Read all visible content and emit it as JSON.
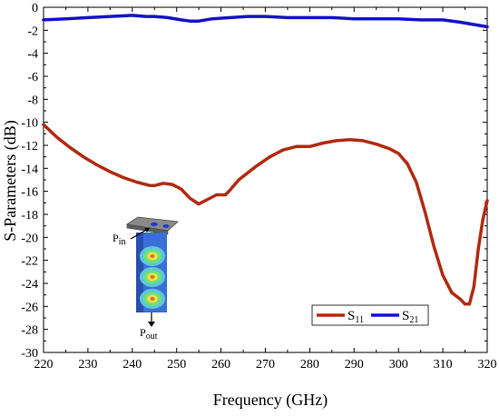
{
  "chart_data": {
    "type": "line",
    "title": "",
    "xlabel": "Frequency (GHz)",
    "ylabel": "S-Parameters (dB)",
    "xlim": [
      220,
      320
    ],
    "ylim": [
      -30,
      0
    ],
    "x_ticks": [
      220,
      230,
      240,
      250,
      260,
      270,
      280,
      290,
      300,
      310,
      320
    ],
    "y_ticks": [
      0,
      -2,
      -4,
      -6,
      -8,
      -10,
      -12,
      -14,
      -16,
      -18,
      -20,
      -22,
      -24,
      -26,
      -28,
      -30
    ],
    "grid": false,
    "legend_position": "bottom-right",
    "series": [
      {
        "name": "S11",
        "label_main": "S",
        "label_sub": "11",
        "color": "#b22a10",
        "x": [
          220,
          223,
          226,
          229,
          232,
          235,
          238,
          241,
          244,
          245,
          247,
          249,
          251,
          253,
          255,
          257,
          259,
          261,
          262,
          264,
          266,
          268,
          271,
          274,
          277,
          280,
          283,
          286,
          289,
          292,
          295,
          298,
          300,
          302,
          304,
          306,
          308,
          310,
          312,
          314,
          315,
          316,
          317,
          318,
          319,
          320
        ],
        "y": [
          -10.2,
          -11.3,
          -12.2,
          -13.0,
          -13.7,
          -14.3,
          -14.8,
          -15.2,
          -15.5,
          -15.5,
          -15.3,
          -15.4,
          -15.8,
          -16.6,
          -17.1,
          -16.7,
          -16.3,
          -16.3,
          -15.9,
          -15.0,
          -14.4,
          -13.8,
          -13.0,
          -12.4,
          -12.1,
          -12.1,
          -11.8,
          -11.6,
          -11.5,
          -11.6,
          -11.9,
          -12.3,
          -12.7,
          -13.6,
          -15.2,
          -17.8,
          -20.8,
          -23.3,
          -24.8,
          -25.4,
          -25.8,
          -25.8,
          -24.3,
          -21.0,
          -18.5,
          -16.8
        ]
      },
      {
        "name": "S21",
        "label_main": "S",
        "label_sub": "21",
        "color": "#1414c8",
        "x": [
          220,
          225,
          230,
          235,
          240,
          243,
          245,
          248,
          251,
          253,
          255,
          258,
          262,
          266,
          270,
          275,
          280,
          285,
          290,
          295,
          300,
          305,
          310,
          314,
          317,
          320
        ],
        "y": [
          -1.1,
          -1.0,
          -0.9,
          -0.8,
          -0.7,
          -0.8,
          -0.8,
          -0.9,
          -1.1,
          -1.2,
          -1.2,
          -1.0,
          -0.9,
          -0.8,
          -0.8,
          -0.9,
          -0.9,
          -0.9,
          -1.0,
          -1.0,
          -1.0,
          -1.1,
          -1.1,
          -1.3,
          -1.5,
          -1.7
        ]
      }
    ],
    "inset": {
      "input_label_main": "P",
      "input_label_sub": "in",
      "output_label_main": "P",
      "output_label_sub": "out"
    }
  }
}
